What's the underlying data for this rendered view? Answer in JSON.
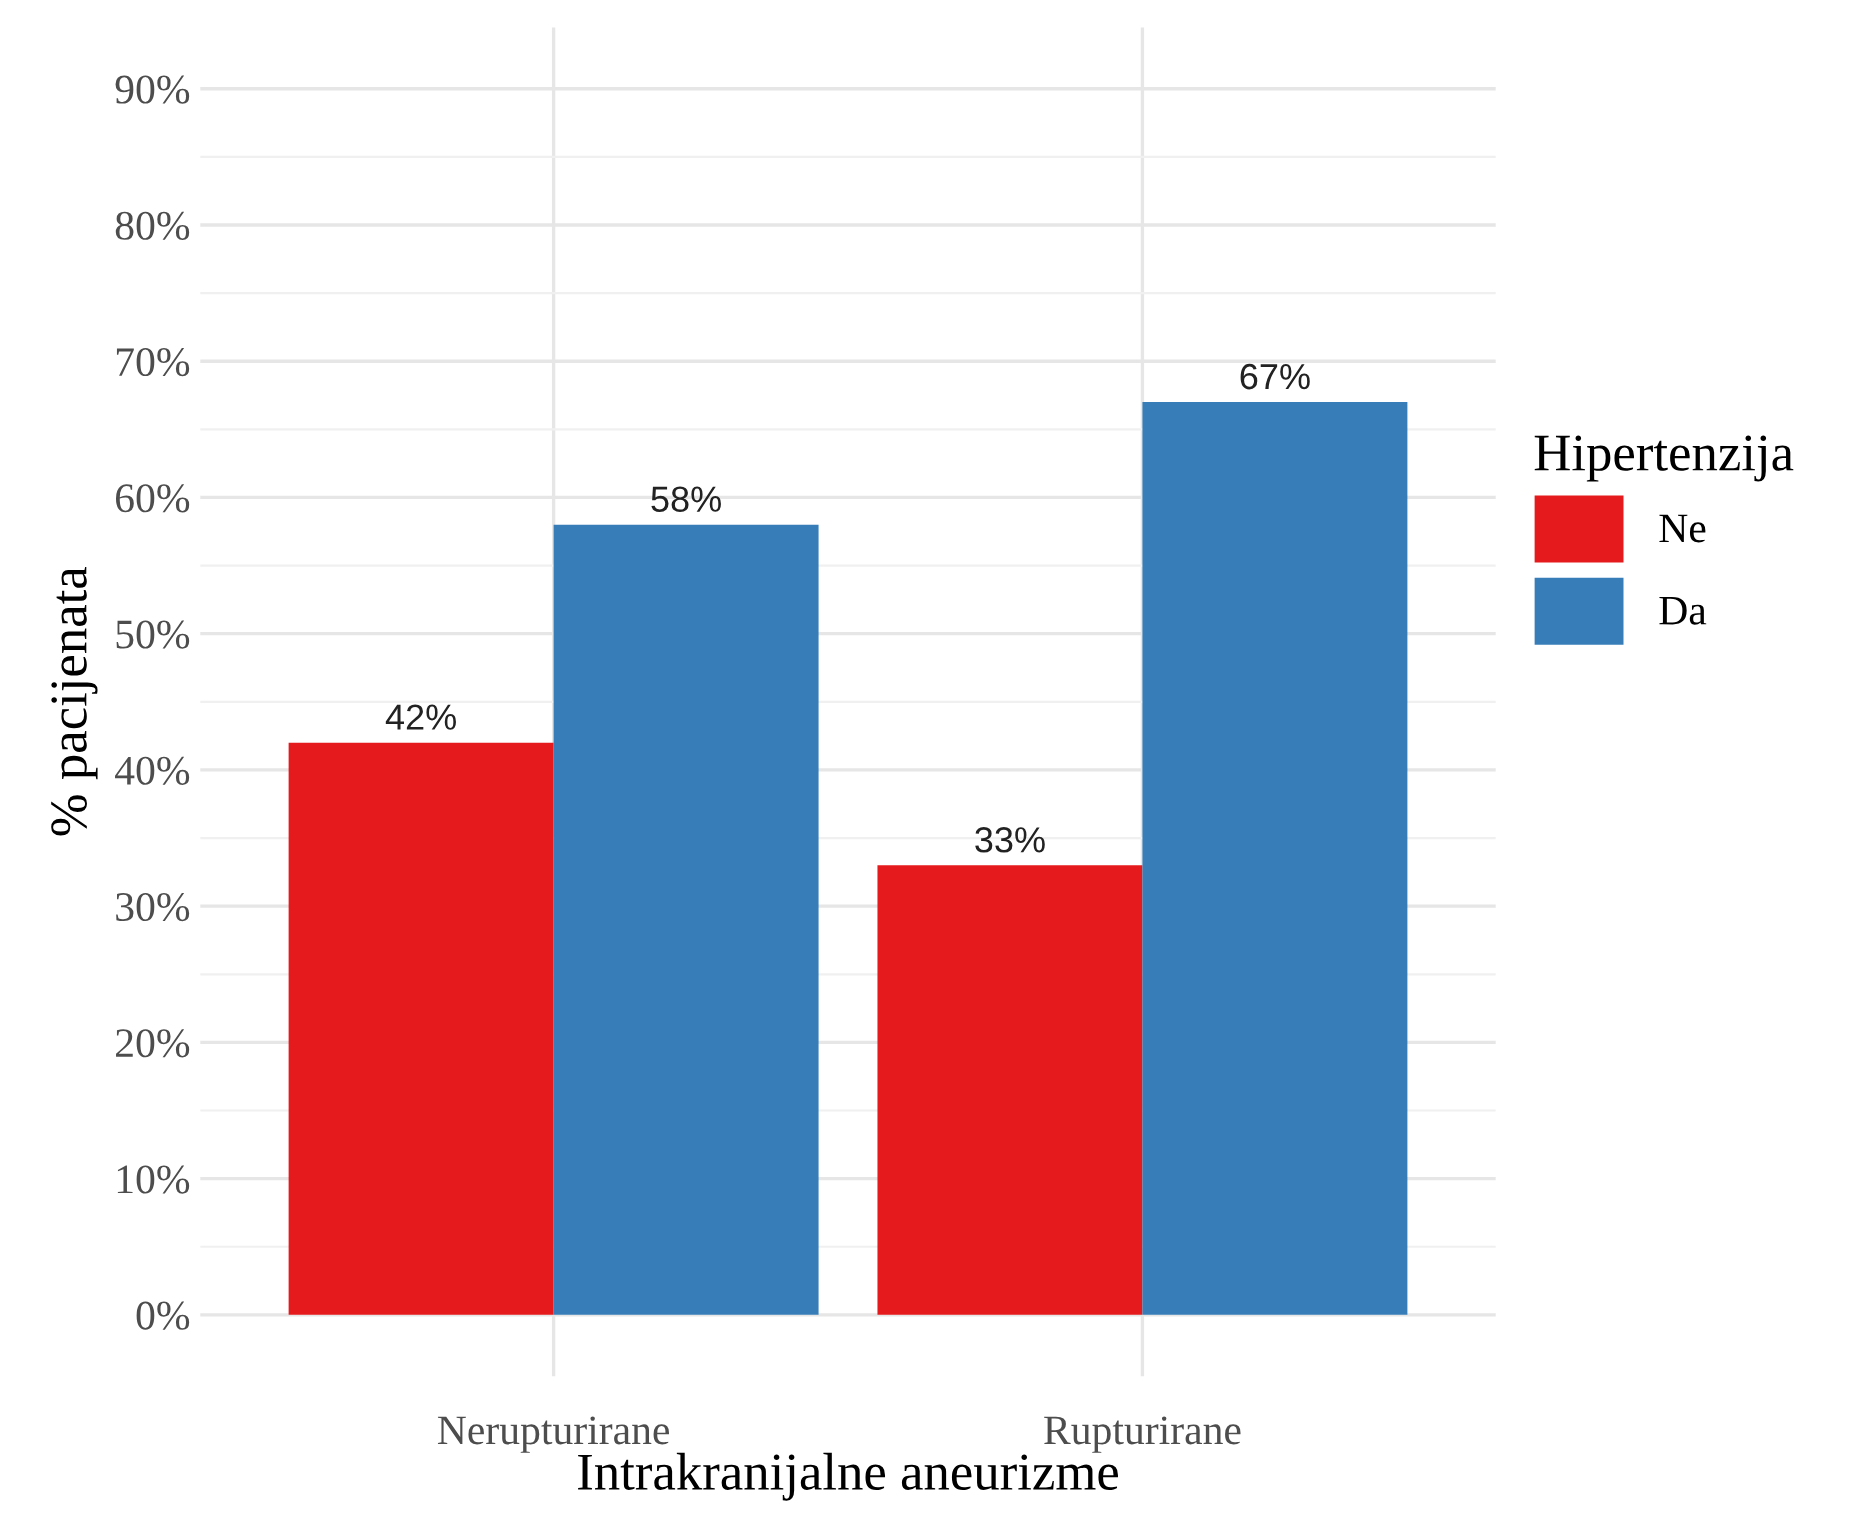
{
  "chart_data": {
    "type": "bar",
    "xlabel": "Intrakranijalne aneurizme",
    "ylabel": "% pacijenata",
    "legend_title": "Hipertenzija",
    "categories": [
      "Nerupturirane",
      "Rupturirane"
    ],
    "series": [
      {
        "name": "Ne",
        "color": "#e41a1c",
        "values": [
          42,
          33
        ],
        "value_labels": [
          "42%",
          "33%"
        ]
      },
      {
        "name": "Da",
        "color": "#377eb8",
        "values": [
          58,
          67
        ],
        "value_labels": [
          "58%",
          "67%"
        ]
      }
    ],
    "ylim": [
      -4.5,
      94.5
    ],
    "yticks": [
      {
        "value": 0,
        "label": "0%"
      },
      {
        "value": 10,
        "label": "10%"
      },
      {
        "value": 20,
        "label": "20%"
      },
      {
        "value": 30,
        "label": "30%"
      },
      {
        "value": 40,
        "label": "40%"
      },
      {
        "value": 50,
        "label": "50%"
      },
      {
        "value": 60,
        "label": "60%"
      },
      {
        "value": 70,
        "label": "70%"
      },
      {
        "value": 80,
        "label": "80%"
      },
      {
        "value": 90,
        "label": "90%"
      }
    ],
    "grid": true,
    "legend": "right"
  }
}
